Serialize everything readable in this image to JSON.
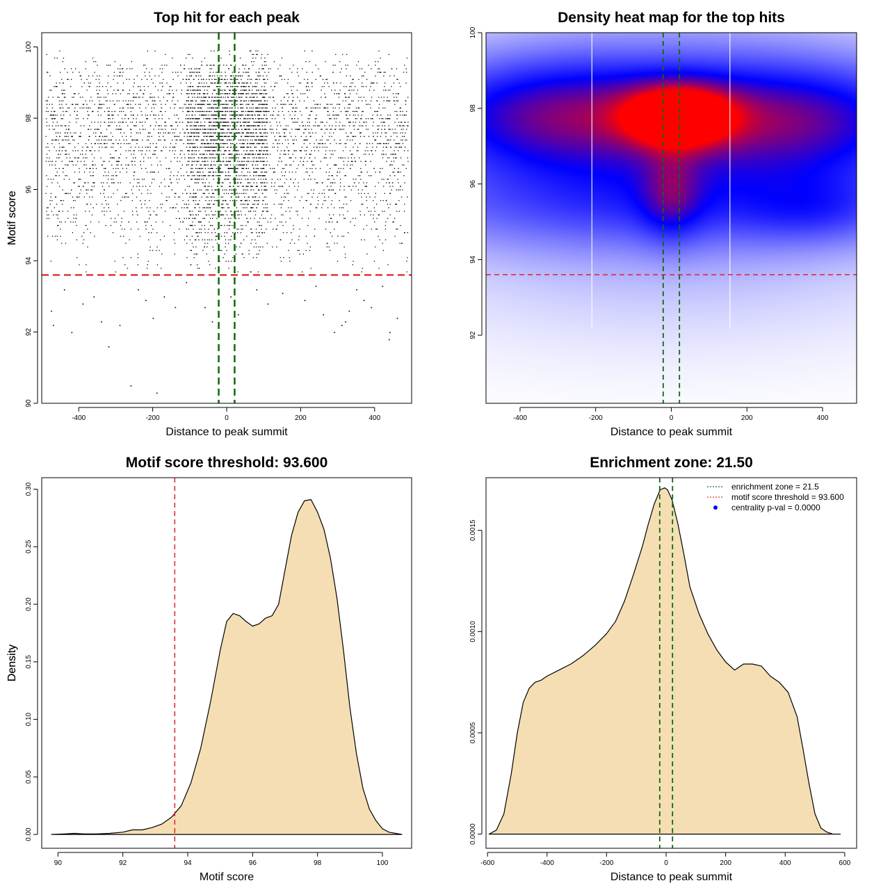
{
  "chart_data": [
    {
      "id": "scatter",
      "type": "scatter",
      "title": "Top hit for each peak",
      "xlabel": "Distance to peak summit",
      "ylabel": "Motif score",
      "xlim": [
        -500,
        500
      ],
      "ylim": [
        90,
        100.4
      ],
      "xticks": [
        -400,
        -200,
        0,
        200,
        400
      ],
      "yticks": [
        90,
        92,
        94,
        96,
        98,
        100
      ],
      "score_threshold": 93.6,
      "enrichment_zone": [
        -21.5,
        21.5
      ],
      "sparse_points": [
        {
          "x": -475,
          "y": 92.6
        },
        {
          "x": -470,
          "y": 92.2
        },
        {
          "x": -440,
          "y": 93.2
        },
        {
          "x": -420,
          "y": 92.0
        },
        {
          "x": -390,
          "y": 92.8
        },
        {
          "x": -360,
          "y": 93.0
        },
        {
          "x": -340,
          "y": 92.3
        },
        {
          "x": -320,
          "y": 91.6
        },
        {
          "x": -290,
          "y": 92.2
        },
        {
          "x": -260,
          "y": 90.5
        },
        {
          "x": -240,
          "y": 93.2
        },
        {
          "x": -220,
          "y": 92.9
        },
        {
          "x": -200,
          "y": 92.4
        },
        {
          "x": -190,
          "y": 90.3
        },
        {
          "x": -170,
          "y": 93.0
        },
        {
          "x": -140,
          "y": 92.7
        },
        {
          "x": -110,
          "y": 93.4
        },
        {
          "x": -60,
          "y": 92.7
        },
        {
          "x": -40,
          "y": 92.3
        },
        {
          "x": 10,
          "y": 93.0
        },
        {
          "x": 30,
          "y": 92.5
        },
        {
          "x": 80,
          "y": 93.2
        },
        {
          "x": 110,
          "y": 92.8
        },
        {
          "x": 150,
          "y": 93.1
        },
        {
          "x": 210,
          "y": 92.9
        },
        {
          "x": 240,
          "y": 93.3
        },
        {
          "x": 260,
          "y": 92.5
        },
        {
          "x": 290,
          "y": 92.0
        },
        {
          "x": 310,
          "y": 92.2
        },
        {
          "x": 320,
          "y": 92.3
        },
        {
          "x": 330,
          "y": 92.6
        },
        {
          "x": 350,
          "y": 93.2
        },
        {
          "x": 370,
          "y": 92.9
        },
        {
          "x": 390,
          "y": 92.7
        },
        {
          "x": 420,
          "y": 93.3
        },
        {
          "x": 438,
          "y": 91.8
        },
        {
          "x": 440,
          "y": 92.0
        },
        {
          "x": 460,
          "y": 92.4
        }
      ]
    },
    {
      "id": "heatmap",
      "type": "heatmap",
      "title": "Density heat map for the top hits",
      "xlabel": "Distance to peak summit",
      "ylabel": "Motif score",
      "xlim": [
        -490,
        490
      ],
      "ylim": [
        90.2,
        100
      ],
      "xticks": [
        -400,
        -200,
        0,
        200,
        400
      ],
      "yticks": [
        92,
        94,
        96,
        98,
        100
      ],
      "score_threshold": 93.6,
      "enrichment_zone": [
        -21.5,
        21.5
      ],
      "colors": [
        "#ffffff",
        "#0000ff",
        "#ff0000"
      ],
      "density_blobs": [
        {
          "x": 0,
          "y": 97.8,
          "sx": 520,
          "sy": 1.1,
          "w": 0.55
        },
        {
          "x": -330,
          "y": 97.8,
          "sx": 220,
          "sy": 1.0,
          "w": 0.35
        },
        {
          "x": 350,
          "y": 97.6,
          "sx": 220,
          "sy": 1.0,
          "w": 0.35
        },
        {
          "x": 0,
          "y": 95.5,
          "sx": 620,
          "sy": 0.9,
          "w": 0.38
        },
        {
          "x": 380,
          "y": 95.3,
          "sx": 130,
          "sy": 0.6,
          "w": 0.18
        },
        {
          "x": 0,
          "y": 98.0,
          "sx": 480,
          "sy": 2.2,
          "w": 0.25
        },
        {
          "x": 0,
          "y": 94.0,
          "sx": 520,
          "sy": 1.6,
          "w": 0.12
        },
        {
          "x": 20,
          "y": 97.8,
          "sx": 95,
          "sy": 0.55,
          "w": 0.95
        },
        {
          "x": 0,
          "y": 95.7,
          "sx": 55,
          "sy": 0.8,
          "w": 0.35
        }
      ]
    },
    {
      "id": "score_density",
      "type": "area",
      "title": "Motif score threshold: 93.600",
      "xlabel": "Motif score",
      "ylabel": "Density",
      "xlim": [
        89.5,
        100.9
      ],
      "ylim": [
        -0.012,
        0.31
      ],
      "xticks": [
        90,
        92,
        94,
        96,
        98,
        100
      ],
      "yticks": [
        0.0,
        0.05,
        0.1,
        0.15,
        0.2,
        0.25,
        0.3
      ],
      "ytick_labels": [
        "0.00",
        "0.05",
        "0.10",
        "0.15",
        "0.20",
        "0.25",
        "0.30"
      ],
      "threshold_line": 93.6,
      "x": [
        89.8,
        90.2,
        90.5,
        90.8,
        91.2,
        91.6,
        92.0,
        92.3,
        92.6,
        92.9,
        93.2,
        93.5,
        93.8,
        94.1,
        94.4,
        94.7,
        95.0,
        95.2,
        95.4,
        95.6,
        95.8,
        96.0,
        96.2,
        96.4,
        96.6,
        96.8,
        97.0,
        97.2,
        97.4,
        97.6,
        97.8,
        98.0,
        98.2,
        98.4,
        98.6,
        98.8,
        99.0,
        99.2,
        99.4,
        99.6,
        99.8,
        100.0,
        100.2,
        100.4,
        100.6
      ],
      "y": [
        0.0,
        0.0005,
        0.001,
        0.0005,
        0.0005,
        0.001,
        0.002,
        0.004,
        0.004,
        0.006,
        0.009,
        0.015,
        0.025,
        0.045,
        0.075,
        0.115,
        0.16,
        0.185,
        0.192,
        0.19,
        0.185,
        0.181,
        0.183,
        0.188,
        0.19,
        0.2,
        0.23,
        0.26,
        0.28,
        0.29,
        0.291,
        0.28,
        0.265,
        0.24,
        0.205,
        0.16,
        0.11,
        0.07,
        0.04,
        0.022,
        0.012,
        0.005,
        0.002,
        0.001,
        0.0
      ]
    },
    {
      "id": "distance_density",
      "type": "area",
      "title": "Enrichment zone: 21.50",
      "xlabel": "Distance to peak summit",
      "ylabel": "Density",
      "xlim": [
        -605,
        640
      ],
      "ylim": [
        -7e-05,
        0.00176
      ],
      "xticks": [
        -600,
        -400,
        -200,
        0,
        200,
        400,
        600
      ],
      "yticks": [
        0.0,
        0.0005,
        0.001,
        0.0015
      ],
      "ytick_labels": [
        "0.0000",
        "0.0005",
        "0.0010",
        "0.0015"
      ],
      "enrichment_zone": [
        -21.5,
        21.5
      ],
      "legend": [
        {
          "label": "enrichment zone = 21.5",
          "color": "#1a6b1a",
          "kind": "dotted-line"
        },
        {
          "label": "motif score threshold = 93.600",
          "color": "#dd3333",
          "kind": "dotted-line"
        },
        {
          "label": "centrality p-val = 0.0000",
          "color": "#0000ee",
          "kind": "point"
        }
      ],
      "legend_position": "top-right",
      "x": [
        -595,
        -570,
        -545,
        -520,
        -500,
        -480,
        -460,
        -440,
        -420,
        -400,
        -360,
        -320,
        -280,
        -240,
        -200,
        -170,
        -140,
        -110,
        -80,
        -60,
        -40,
        -20,
        -5,
        5,
        20,
        40,
        60,
        80,
        110,
        140,
        170,
        200,
        230,
        260,
        290,
        320,
        350,
        380,
        410,
        440,
        460,
        480,
        500,
        520,
        540,
        560,
        585
      ],
      "y": [
        0.0,
        2e-05,
        0.0001,
        0.0003,
        0.0005,
        0.00065,
        0.00072,
        0.00075,
        0.00076,
        0.00078,
        0.00081,
        0.00084,
        0.00088,
        0.00093,
        0.00099,
        0.00105,
        0.00115,
        0.00128,
        0.00142,
        0.00153,
        0.00163,
        0.0017,
        0.00171,
        0.0017,
        0.00165,
        0.00153,
        0.00138,
        0.00122,
        0.00109,
        0.00099,
        0.00091,
        0.00085,
        0.00081,
        0.00084,
        0.00084,
        0.00083,
        0.00078,
        0.00075,
        0.0007,
        0.00058,
        0.00042,
        0.00025,
        0.0001,
        3e-05,
        1e-05,
        0.0,
        0.0
      ]
    }
  ]
}
